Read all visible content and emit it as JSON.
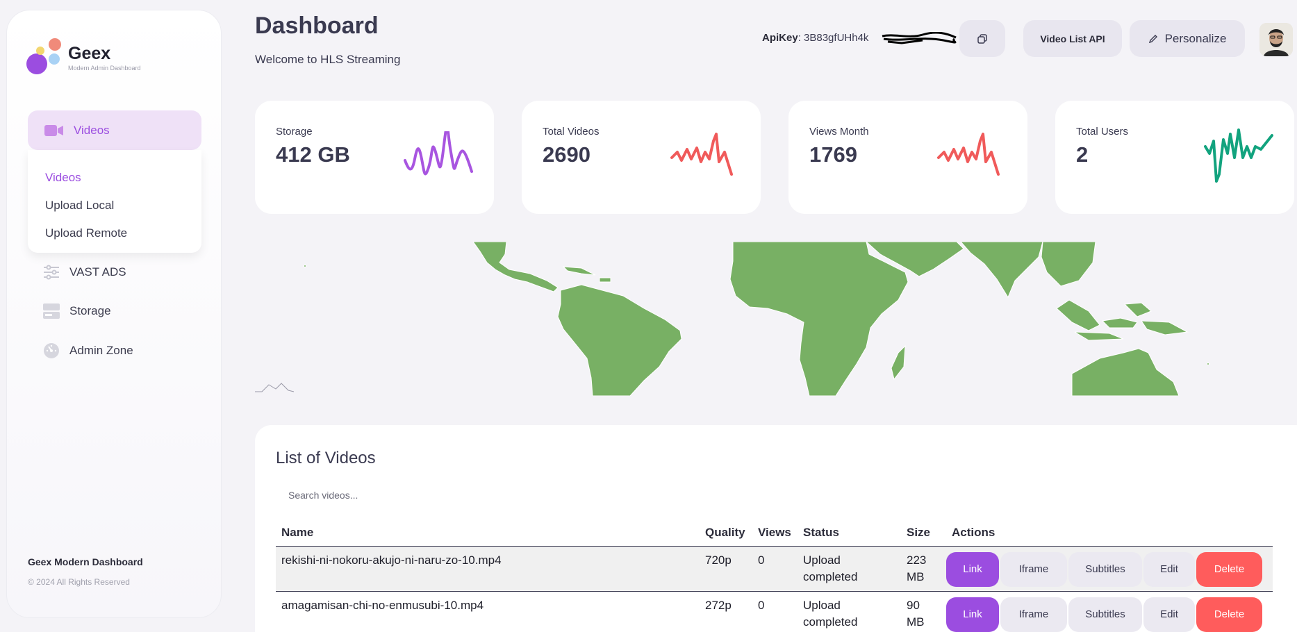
{
  "brand": {
    "title": "Geex",
    "subtitle": "Modern Admin Dashboard"
  },
  "sidebar": {
    "active": {
      "label": "Videos",
      "icon": "video-camera-icon"
    },
    "submenu": [
      "Videos",
      "Upload Local",
      "Upload Remote"
    ],
    "items": [
      {
        "label": "VAST ADS",
        "icon": "sliders-icon"
      },
      {
        "label": "Storage",
        "icon": "storage-icon"
      },
      {
        "label": "Admin Zone",
        "icon": "gauge-icon"
      }
    ],
    "footer_title": "Geex Modern Dashboard",
    "footer_copy": "© 2024 All Rights Reserved"
  },
  "header": {
    "title": "Dashboard",
    "subtitle": "Welcome to HLS Streaming",
    "apikey_label": "ApiKey",
    "apikey_value": ": 3B83gfUHh4k",
    "video_list_api": "Video List API",
    "personalize": "Personalize"
  },
  "stats": [
    {
      "label": "Storage",
      "value": "412 GB",
      "color": "#a855e0"
    },
    {
      "label": "Total Videos",
      "value": "2690",
      "color": "#f05a5a"
    },
    {
      "label": "Views Month",
      "value": "1769",
      "color": "#f05a5a"
    },
    {
      "label": "Total Users",
      "value": "2",
      "color": "#12a37e"
    }
  ],
  "map": {
    "land_color": "#78b064"
  },
  "videos": {
    "title": "List of Videos",
    "search_placeholder": "Search videos...",
    "columns": [
      "Name",
      "Quality",
      "Views",
      "Status",
      "Size",
      "Actions"
    ],
    "rows": [
      {
        "name": "rekishi-ni-nokoru-akujo-ni-naru-zo-10.mp4",
        "quality": "720p",
        "views": "0",
        "status_line1": "Upload",
        "status_line2": "completed",
        "size_line1": "223",
        "size_line2": "MB"
      },
      {
        "name": "amagamisan-chi-no-enmusubi-10.mp4",
        "quality": "272p",
        "views": "0",
        "status_line1": "Upload",
        "status_line2": "completed",
        "size_line1": "90 MB",
        "size_line2": ""
      }
    ],
    "actions": {
      "link": "Link",
      "iframe": "Iframe",
      "subtitles": "Subtitles",
      "edit": "Edit",
      "delete": "Delete"
    }
  }
}
